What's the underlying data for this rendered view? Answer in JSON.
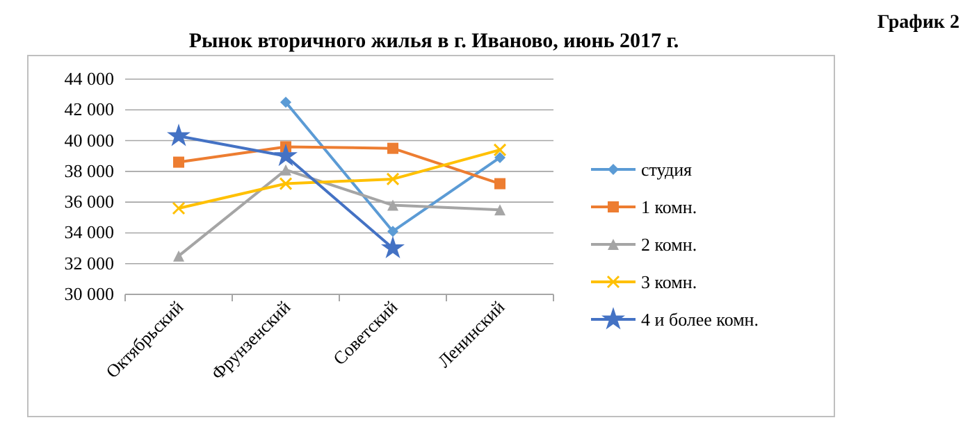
{
  "chart_data": {
    "type": "line",
    "title": "Рынок вторичного жилья в г. Иваново, июнь 2017 г.",
    "annotations": [
      "График 2"
    ],
    "categories": [
      "Октябрьский",
      "Фрунзенский",
      "Советский",
      "Ленинский"
    ],
    "ylim": [
      30000,
      44000
    ],
    "yticks": [
      {
        "value": 30000,
        "label": "30 000"
      },
      {
        "value": 32000,
        "label": "32 000"
      },
      {
        "value": 34000,
        "label": "34 000"
      },
      {
        "value": 36000,
        "label": "36 000"
      },
      {
        "value": 38000,
        "label": "38 000"
      },
      {
        "value": 40000,
        "label": "40 000"
      },
      {
        "value": 42000,
        "label": "42 000"
      },
      {
        "value": 44000,
        "label": "44 000"
      }
    ],
    "grid": "y",
    "legend": "right",
    "series": [
      {
        "name": "студия",
        "color": "#5b9bd5",
        "marker": "diamond",
        "values": [
          null,
          42500,
          34100,
          38900
        ]
      },
      {
        "name": "1 комн.",
        "color": "#ed7d31",
        "marker": "square",
        "values": [
          38600,
          39600,
          39500,
          37200
        ]
      },
      {
        "name": "2 комн.",
        "color": "#a5a5a5",
        "marker": "triangle",
        "values": [
          32500,
          38100,
          35800,
          35500
        ]
      },
      {
        "name": "3 комн.",
        "color": "#ffc000",
        "marker": "cross",
        "values": [
          35600,
          37200,
          37500,
          39400
        ]
      },
      {
        "name": "4 и более комн.",
        "color": "#4472c4",
        "marker": "star",
        "values": [
          40300,
          39000,
          33000,
          null
        ]
      }
    ]
  }
}
